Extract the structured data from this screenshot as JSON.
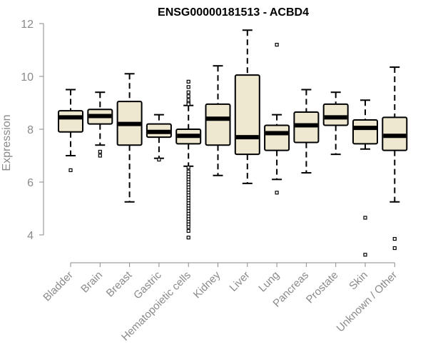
{
  "chart_data": {
    "type": "boxplot",
    "title": "ENSG00000181513 - ACBD4",
    "xlabel": "",
    "ylabel": "Expression",
    "ylim": [
      3.0,
      12.0
    ],
    "yticks": [
      4,
      6,
      8,
      10,
      12
    ],
    "box_fill": "#efe8d0",
    "box_stroke": "#000000",
    "median_color": "#000000",
    "categories": [
      "Bladder",
      "Brain",
      "Breast",
      "Gastric",
      "Hematopoietic cells",
      "Kidney",
      "Liver",
      "Lung",
      "Pancreas",
      "Prostate",
      "Skin",
      "Unknown / Other"
    ],
    "boxes": [
      {
        "name": "Bladder",
        "whisker_low": 7.0,
        "q1": 7.9,
        "median": 8.45,
        "q3": 8.7,
        "whisker_high": 9.5,
        "outliers": [
          6.45
        ]
      },
      {
        "name": "Brain",
        "whisker_low": 7.4,
        "q1": 8.2,
        "median": 8.5,
        "q3": 8.75,
        "whisker_high": 9.4,
        "outliers": [
          7.15,
          7.0
        ]
      },
      {
        "name": "Breast",
        "whisker_low": 5.25,
        "q1": 7.4,
        "median": 8.2,
        "q3": 9.05,
        "whisker_high": 10.1,
        "outliers": []
      },
      {
        "name": "Gastric",
        "whisker_low": 6.9,
        "q1": 7.7,
        "median": 7.9,
        "q3": 8.2,
        "whisker_high": 8.55,
        "outliers": [
          6.85
        ]
      },
      {
        "name": "Hematopoietic cells",
        "whisker_low": 6.6,
        "q1": 7.45,
        "median": 7.75,
        "q3": 8.0,
        "whisker_high": 8.9,
        "outliers": [
          9.8,
          9.6,
          9.4,
          9.25,
          9.1,
          9.0,
          8.95,
          6.55,
          6.4,
          6.3,
          6.2,
          6.1,
          6.0,
          5.9,
          5.8,
          5.7,
          5.6,
          5.5,
          5.4,
          5.3,
          5.2,
          5.1,
          5.0,
          4.9,
          4.8,
          4.7,
          4.6,
          4.5,
          4.4,
          4.3,
          4.15,
          3.9
        ]
      },
      {
        "name": "Kidney",
        "whisker_low": 6.25,
        "q1": 7.4,
        "median": 8.4,
        "q3": 8.95,
        "whisker_high": 10.4,
        "outliers": []
      },
      {
        "name": "Liver",
        "whisker_low": 5.95,
        "q1": 7.05,
        "median": 7.7,
        "q3": 10.05,
        "whisker_high": 11.75,
        "outliers": []
      },
      {
        "name": "Lung",
        "whisker_low": 6.1,
        "q1": 7.2,
        "median": 7.85,
        "q3": 8.15,
        "whisker_high": 8.55,
        "outliers": [
          11.2,
          5.6
        ]
      },
      {
        "name": "Pancreas",
        "whisker_low": 6.35,
        "q1": 7.5,
        "median": 8.15,
        "q3": 8.65,
        "whisker_high": 9.5,
        "outliers": []
      },
      {
        "name": "Prostate",
        "whisker_low": 7.05,
        "q1": 8.15,
        "median": 8.45,
        "q3": 8.95,
        "whisker_high": 9.4,
        "outliers": []
      },
      {
        "name": "Skin",
        "whisker_low": 7.25,
        "q1": 7.45,
        "median": 8.05,
        "q3": 8.35,
        "whisker_high": 9.1,
        "outliers": [
          4.65,
          3.25
        ]
      },
      {
        "name": "Unknown / Other",
        "whisker_low": 5.25,
        "q1": 7.2,
        "median": 7.75,
        "q3": 8.45,
        "whisker_high": 10.35,
        "outliers": [
          3.85,
          3.5
        ]
      }
    ]
  }
}
